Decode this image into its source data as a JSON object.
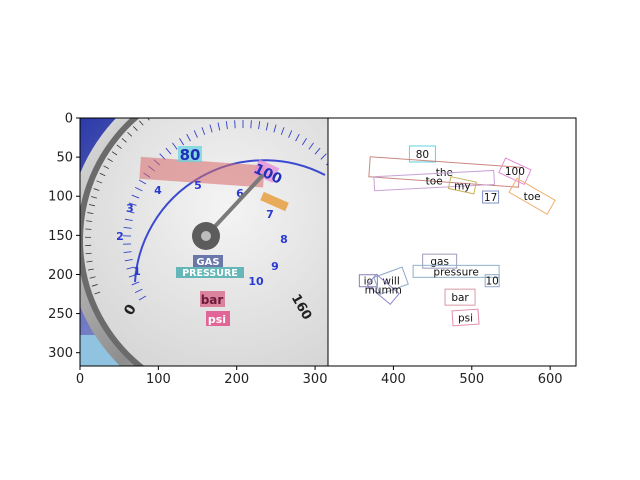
{
  "chart_data": {
    "type": "scatter",
    "xlim": [
      0,
      633
    ],
    "ylim": [
      317,
      0
    ],
    "x_ticks": [
      0,
      100,
      200,
      300,
      400,
      500,
      600
    ],
    "y_ticks": [
      0,
      50,
      100,
      150,
      200,
      250,
      300
    ],
    "grid": false,
    "gauge_image": {
      "extent": [
        0,
        317
      ],
      "labels": {
        "top_scale": "80",
        "right_scale": "100",
        "mid_scale": [
          "1",
          "2",
          "3",
          "4",
          "5",
          "6",
          "7",
          "8",
          "9",
          "10"
        ],
        "lower_left": "0",
        "lower_right": "160",
        "name1": "GAS",
        "name2": "PRESSURE",
        "unit1": "bar",
        "unit2": "psi"
      }
    },
    "annotations": [
      {
        "text": "80",
        "x": 437,
        "y": 46,
        "color": "#5fd3e0"
      },
      {
        "text": "the",
        "x": 465,
        "y": 69,
        "color": "#c9877f"
      },
      {
        "text": "100",
        "x": 555,
        "y": 68,
        "color": "#e58ad8"
      },
      {
        "text": "toe",
        "x": 452,
        "y": 80,
        "color": "#c9a3d6"
      },
      {
        "text": "my",
        "x": 488,
        "y": 86,
        "color": "#c9b25f"
      },
      {
        "text": "17",
        "x": 524,
        "y": 101,
        "color": "#7f93c9"
      },
      {
        "text": "toe",
        "x": 577,
        "y": 100,
        "color": "#f0b070"
      },
      {
        "text": "gas",
        "x": 459,
        "y": 183,
        "color": "#9a9ab8"
      },
      {
        "text": "pressure",
        "x": 480,
        "y": 196,
        "color": "#8fb0c8"
      },
      {
        "text": "io",
        "x": 368,
        "y": 208,
        "color": "#8a7fb5"
      },
      {
        "text": "will",
        "x": 397,
        "y": 208,
        "color": "#8fa7c8"
      },
      {
        "text": "mumm",
        "x": 387,
        "y": 219,
        "color": "#8f86c9"
      },
      {
        "text": "10",
        "x": 526,
        "y": 208,
        "color": "#8fa7c8"
      },
      {
        "text": "bar",
        "x": 485,
        "y": 229,
        "color": "#d59aa6"
      },
      {
        "text": "psi",
        "x": 492,
        "y": 255,
        "color": "#e38aa8"
      }
    ]
  }
}
